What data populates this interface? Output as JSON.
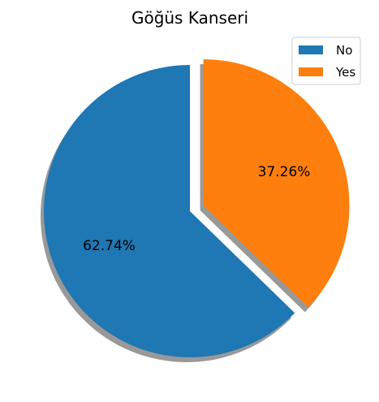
{
  "chart_data": {
    "type": "pie",
    "title": "Göğüs Kanseri",
    "categories": [
      "No",
      "Yes"
    ],
    "values": [
      62.74,
      37.26
    ],
    "labels": [
      "62.74%",
      "37.26%"
    ],
    "colors": [
      "#1f77b4",
      "#ff7f0e"
    ],
    "explode": [
      0,
      0.1
    ],
    "shadow": true,
    "legend": {
      "position": "top-right",
      "entries": [
        "No",
        "Yes"
      ]
    }
  }
}
